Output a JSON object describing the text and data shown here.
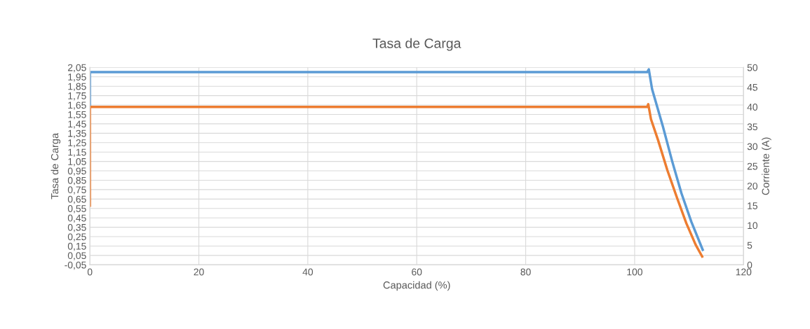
{
  "chart_data": {
    "type": "line",
    "title": "Tasa de Carga",
    "xlabel": "Capacidad (%)",
    "ylabel": "Tasa de Carga",
    "y2label": "Corriente (A)",
    "grid": true,
    "marker": "none",
    "line_style": "solid",
    "xlim": [
      0,
      120
    ],
    "xticks": [
      0,
      20,
      40,
      60,
      80,
      100,
      120
    ],
    "ylim": [
      -0.05,
      2.05
    ],
    "yticks": [
      {
        "value": -0.05,
        "label": "-0,05"
      },
      {
        "value": 0.05,
        "label": "0,05"
      },
      {
        "value": 0.15,
        "label": "0,15"
      },
      {
        "value": 0.25,
        "label": "0,25"
      },
      {
        "value": 0.35,
        "label": "0,35"
      },
      {
        "value": 0.45,
        "label": "0,45"
      },
      {
        "value": 0.55,
        "label": "0,55"
      },
      {
        "value": 0.65,
        "label": "0,65"
      },
      {
        "value": 0.75,
        "label": "0,75"
      },
      {
        "value": 0.85,
        "label": "0,85"
      },
      {
        "value": 0.95,
        "label": "0,95"
      },
      {
        "value": 1.05,
        "label": "1,05"
      },
      {
        "value": 1.15,
        "label": "1,15"
      },
      {
        "value": 1.25,
        "label": "1,25"
      },
      {
        "value": 1.35,
        "label": "1,35"
      },
      {
        "value": 1.45,
        "label": "1,45"
      },
      {
        "value": 1.55,
        "label": "1,55"
      },
      {
        "value": 1.65,
        "label": "1,65"
      },
      {
        "value": 1.75,
        "label": "1,75"
      },
      {
        "value": 1.85,
        "label": "1,85"
      },
      {
        "value": 1.95,
        "label": "1,95"
      },
      {
        "value": 2.05,
        "label": "2,05"
      }
    ],
    "y2lim": [
      0,
      50
    ],
    "y2ticks": [
      0,
      5,
      10,
      15,
      20,
      25,
      30,
      35,
      40,
      45,
      50
    ],
    "series": [
      {
        "color": "#5b9bd5",
        "x": [
          0,
          0,
          102.3,
          102.6,
          103.2,
          105.2,
          106.9,
          108.6,
          110.4,
          112.5
        ],
        "values": [
          1.63,
          2.0,
          2.0,
          2.03,
          1.82,
          1.42,
          1.05,
          0.71,
          0.41,
          0.11
        ]
      },
      {
        "color": "#ed7d31",
        "axis": "y2",
        "x": [
          0,
          0,
          102.3,
          102.5,
          103.0,
          104.3,
          106.0,
          107.8,
          109.5,
          111.2,
          112.4
        ],
        "values": [
          15,
          40,
          40,
          40.7,
          36.9,
          31.6,
          24.0,
          16.9,
          10.5,
          5.1,
          2.1
        ]
      }
    ]
  }
}
